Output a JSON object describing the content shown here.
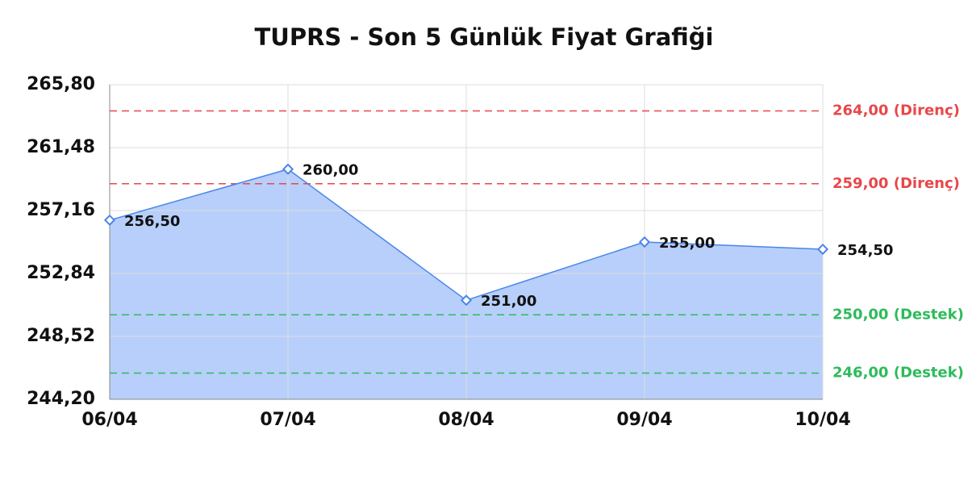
{
  "chart_data": {
    "type": "area",
    "title": "TUPRS - Son 5 Günlük Fiyat Grafiği",
    "categories": [
      "06/04",
      "07/04",
      "08/04",
      "09/04",
      "10/04"
    ],
    "values": [
      256.5,
      260,
      251,
      255,
      254.5
    ],
    "value_labels": [
      "256,50",
      "260,00",
      "251,00",
      "255,00",
      "254,50"
    ],
    "color": "#4a86e8",
    "fill_color": "#b7cffa",
    "ylim": [
      244.2,
      265.8
    ],
    "yticks": [
      {
        "value": 244.2,
        "label": "244,20"
      },
      {
        "value": 248.52,
        "label": "248,52"
      },
      {
        "value": 252.84,
        "label": "252,84"
      },
      {
        "value": 257.16,
        "label": "257,16"
      },
      {
        "value": 261.48,
        "label": "261,48"
      },
      {
        "value": 265.8,
        "label": "265,80"
      }
    ],
    "grid": true,
    "reference_lines": [
      {
        "value": 264,
        "label": "264,00 (Direnç)",
        "color": "#e8474a"
      },
      {
        "value": 259,
        "label": "259,00 (Direnç)",
        "color": "#e8474a"
      },
      {
        "value": 250,
        "label": "250,00 (Destek)",
        "color": "#2dbb5a"
      },
      {
        "value": 246,
        "label": "246,00 (Destek)",
        "color": "#2dbb5a"
      }
    ]
  }
}
